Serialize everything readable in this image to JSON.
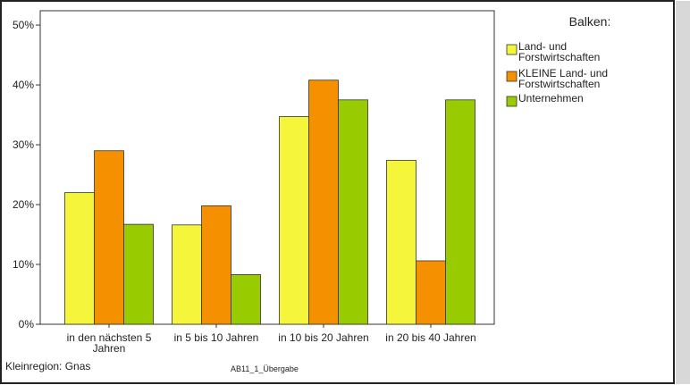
{
  "chart_data": {
    "type": "bar",
    "categories": [
      "in den nächsten 5 Jahren",
      "in 5 bis 10 Jahren",
      "in 10 bis 20 Jahren",
      "in 20 bis 40 Jahren"
    ],
    "series": [
      {
        "name": "Land- und Forstwirtschaften",
        "color": "#f5f53c",
        "values": [
          22,
          16.6,
          34.7,
          27.4
        ]
      },
      {
        "name": "KLEINE Land- und Forstwirtschaften",
        "color": "#f59100",
        "values": [
          29,
          19.8,
          40.8,
          10.6
        ]
      },
      {
        "name": "Unternehmen",
        "color": "#99cc00",
        "values": [
          16.7,
          8.3,
          37.5,
          37.5
        ]
      }
    ],
    "ylim": [
      0,
      52.4
    ],
    "yticks": [
      {
        "value": 0,
        "label": "0%"
      },
      {
        "value": 10,
        "label": "10%"
      },
      {
        "value": 20,
        "label": "20%"
      },
      {
        "value": 30,
        "label": "30%"
      },
      {
        "value": 40,
        "label": "40%"
      },
      {
        "value": 50,
        "label": "50%"
      }
    ],
    "legend_title": "Balken:",
    "footer_left": "Kleinregion: Gnas",
    "footer_center": "AB11_1_Übergabe"
  }
}
